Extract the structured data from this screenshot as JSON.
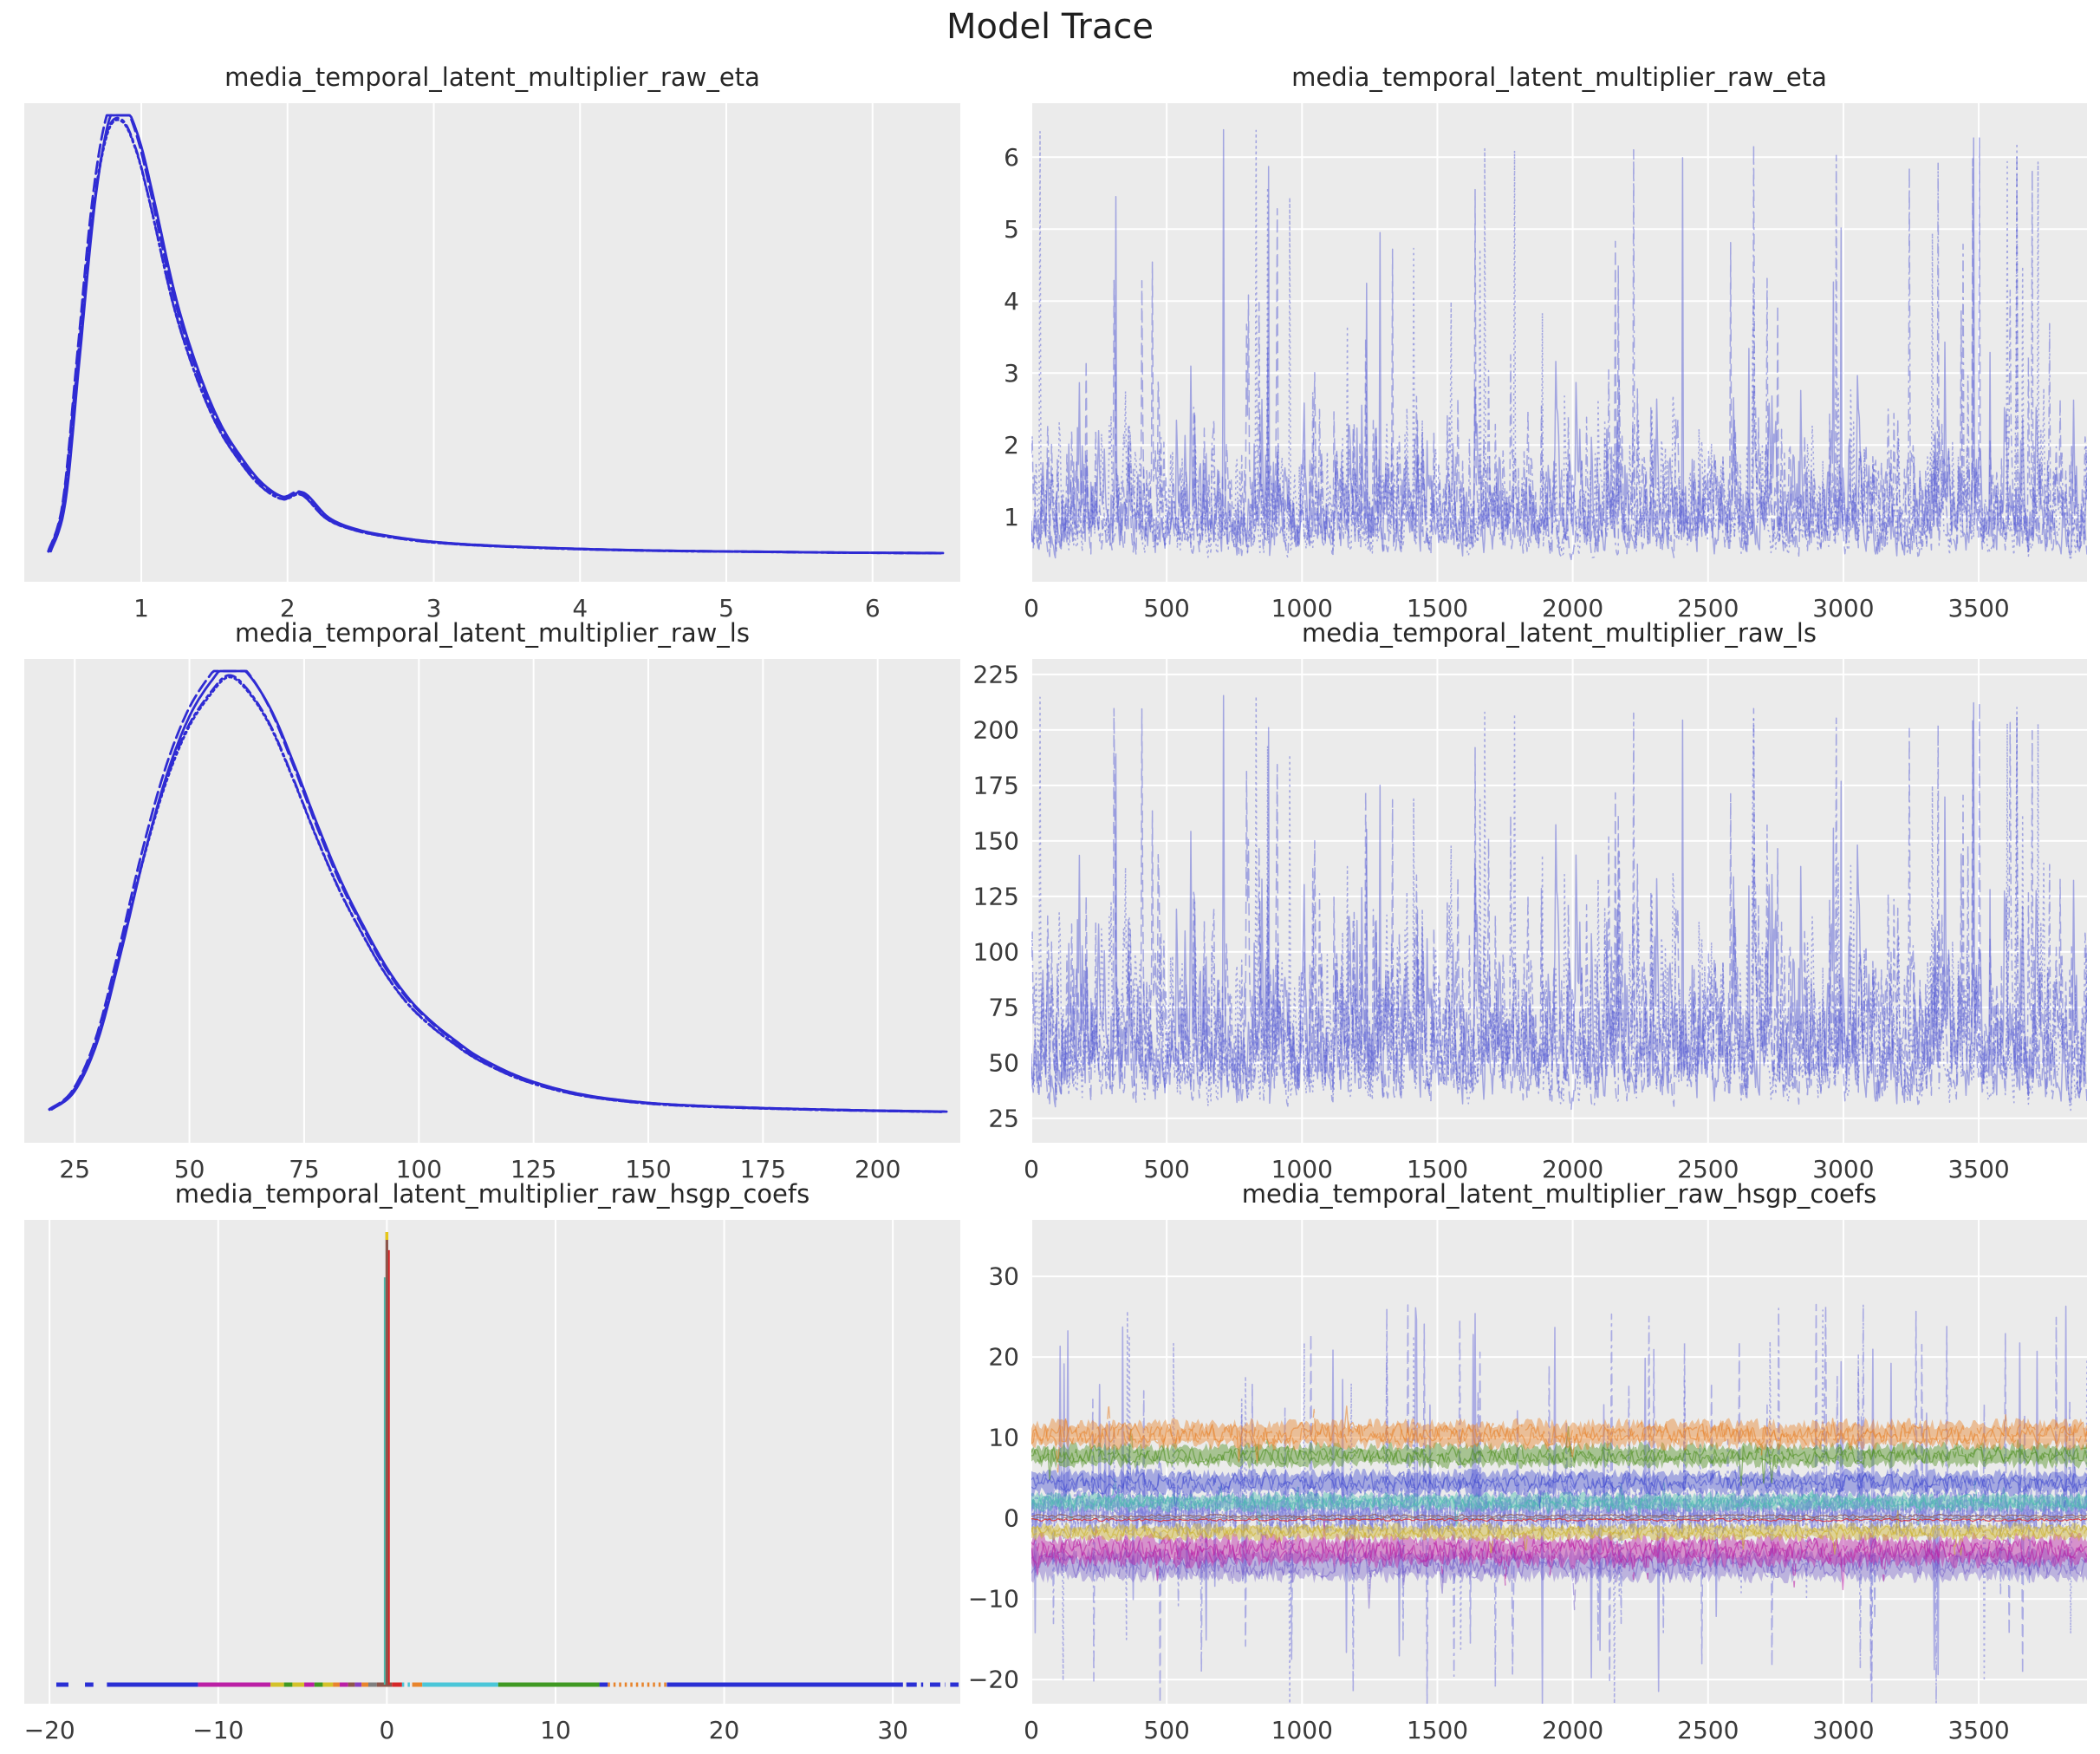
{
  "page": {
    "title": "Model Trace"
  },
  "style": {
    "plot_bg": "#ebebeb",
    "grid_color": "#ffffff",
    "title_color": "#262626",
    "tick_color": "#3a3a3a",
    "kde_blue": "#2f2bd3",
    "trace_blue": "#5a60d5"
  },
  "chain_linestyles": [
    "solid",
    "dashed",
    "dashdot",
    "dotted"
  ],
  "chart_data": [
    {
      "id": "eta-kde",
      "type": "kde",
      "title": "media_temporal_latent_multiplier_raw_eta",
      "xlim": [
        0.2,
        6.6
      ],
      "xticks": [
        1,
        2,
        3,
        4,
        5,
        6
      ],
      "xtick_labels": [
        "1",
        "2",
        "3",
        "4",
        "5",
        "6"
      ],
      "yticks": [],
      "grid": "vertical",
      "chains": 4,
      "color": "#2f2bd3",
      "line_width": 2.8,
      "baseline_offset": 30,
      "curve": [
        [
          0.35,
          0.01
        ],
        [
          0.45,
          0.12
        ],
        [
          0.55,
          0.45
        ],
        [
          0.65,
          0.78
        ],
        [
          0.75,
          0.97
        ],
        [
          0.85,
          1.0
        ],
        [
          0.95,
          0.93
        ],
        [
          1.05,
          0.8
        ],
        [
          1.2,
          0.58
        ],
        [
          1.35,
          0.42
        ],
        [
          1.5,
          0.3
        ],
        [
          1.65,
          0.22
        ],
        [
          1.8,
          0.16
        ],
        [
          1.95,
          0.13
        ],
        [
          2.08,
          0.14
        ],
        [
          2.25,
          0.085
        ],
        [
          2.45,
          0.058
        ],
        [
          2.7,
          0.042
        ],
        [
          3.0,
          0.03
        ],
        [
          3.4,
          0.022
        ],
        [
          4.0,
          0.015
        ],
        [
          4.6,
          0.011
        ],
        [
          5.2,
          0.009
        ],
        [
          5.8,
          0.007
        ],
        [
          6.45,
          0.006
        ]
      ]
    },
    {
      "id": "eta-trace",
      "type": "trace",
      "title": "media_temporal_latent_multiplier_raw_eta",
      "xlim": [
        0,
        3900
      ],
      "xticks": [
        0,
        500,
        1000,
        1500,
        2000,
        2500,
        3000,
        3500
      ],
      "xtick_labels": [
        "0",
        "500",
        "1000",
        "1500",
        "2000",
        "2500",
        "3000",
        "3500"
      ],
      "ylim": [
        0.1,
        6.75
      ],
      "yticks": [
        1,
        2,
        3,
        4,
        5,
        6
      ],
      "ytick_labels": [
        "1",
        "2",
        "3",
        "4",
        "5",
        "6"
      ],
      "grid": "both",
      "chains": 4,
      "color": "#5a60d5",
      "opacity": 0.5,
      "line_width": 1.5,
      "n_points": 1100,
      "model": {
        "lo": 0.32,
        "scale": 0.58,
        "smooth": 0.5,
        "spike_p": 0.012,
        "spike_lo": 3.0,
        "spike_hi": 6.4
      }
    },
    {
      "id": "ls-kde",
      "type": "kde",
      "title": "media_temporal_latent_multiplier_raw_ls",
      "xlim": [
        14,
        218
      ],
      "xticks": [
        25,
        50,
        75,
        100,
        125,
        150,
        175,
        200
      ],
      "xtick_labels": [
        "25",
        "50",
        "75",
        "100",
        "125",
        "150",
        "175",
        "200"
      ],
      "yticks": [],
      "grid": "vertical",
      "chains": 4,
      "color": "#2f2bd3",
      "line_width": 2.8,
      "baseline_offset": 28,
      "curve": [
        [
          19,
          0.02
        ],
        [
          24,
          0.06
        ],
        [
          29,
          0.17
        ],
        [
          34,
          0.36
        ],
        [
          39,
          0.57
        ],
        [
          44,
          0.75
        ],
        [
          49,
          0.88
        ],
        [
          54,
          0.96
        ],
        [
          58,
          1.0
        ],
        [
          62,
          0.97
        ],
        [
          67,
          0.89
        ],
        [
          72,
          0.77
        ],
        [
          77,
          0.64
        ],
        [
          82,
          0.52
        ],
        [
          87,
          0.42
        ],
        [
          92,
          0.33
        ],
        [
          97,
          0.26
        ],
        [
          102,
          0.21
        ],
        [
          107,
          0.17
        ],
        [
          112,
          0.135
        ],
        [
          120,
          0.095
        ],
        [
          128,
          0.068
        ],
        [
          136,
          0.05
        ],
        [
          145,
          0.038
        ],
        [
          155,
          0.03
        ],
        [
          170,
          0.024
        ],
        [
          185,
          0.02
        ],
        [
          200,
          0.017
        ],
        [
          214,
          0.015
        ]
      ]
    },
    {
      "id": "ls-trace",
      "type": "trace",
      "title": "media_temporal_latent_multiplier_raw_ls",
      "xlim": [
        0,
        3900
      ],
      "xticks": [
        0,
        500,
        1000,
        1500,
        2000,
        2500,
        3000,
        3500
      ],
      "xtick_labels": [
        "0",
        "500",
        "1000",
        "1500",
        "2000",
        "2500",
        "3000",
        "3500"
      ],
      "ylim": [
        14,
        232
      ],
      "yticks": [
        25,
        50,
        75,
        100,
        125,
        150,
        175,
        200,
        225
      ],
      "ytick_labels": [
        "25",
        "50",
        "75",
        "100",
        "125",
        "150",
        "175",
        "200",
        "225"
      ],
      "grid": "both",
      "chains": 4,
      "color": "#5a60d5",
      "opacity": 0.5,
      "line_width": 1.5,
      "n_points": 1100,
      "model": {
        "lo": 25,
        "scale": 27,
        "smooth": 0.5,
        "spike_p": 0.012,
        "spike_lo": 120,
        "spike_hi": 216
      }
    },
    {
      "id": "hsgp-kde",
      "type": "kde-multi",
      "title": "media_temporal_latent_multiplier_raw_hsgp_coefs",
      "xlim": [
        -21.5,
        34
      ],
      "xticks": [
        -20,
        -10,
        0,
        10,
        20,
        30
      ],
      "xtick_labels": [
        "−20",
        "−10",
        "0",
        "10",
        "20",
        "30"
      ],
      "yticks": [],
      "grid": "vertical",
      "baseline_offset": 22,
      "spike": {
        "x": 0,
        "height": 1.0,
        "colors": [
          "#49bcae",
          "#8c564b",
          "#d62728"
        ],
        "tip_color": "#e6c719"
      },
      "baseline_segments": [
        [
          -19.6,
          -18.6,
          "#2a2fd4",
          "dashed"
        ],
        [
          -17.9,
          -17.4,
          "#2a2fd4",
          "dashed"
        ],
        [
          -16.6,
          -11.2,
          "#2a2fd4",
          "solid"
        ],
        [
          -11.2,
          -6.9,
          "#bb1fa5",
          "solid"
        ],
        [
          -6.9,
          -6.1,
          "#d4c22a",
          "solid"
        ],
        [
          -6.1,
          -5.6,
          "#3f9922",
          "solid"
        ],
        [
          -5.6,
          -4.9,
          "#d4c22a",
          "solid"
        ],
        [
          -4.9,
          -4.3,
          "#bb1fa5",
          "solid"
        ],
        [
          -4.3,
          -3.8,
          "#3f9922",
          "solid"
        ],
        [
          -3.8,
          -3.2,
          "#d4c22a",
          "solid"
        ],
        [
          -3.2,
          -2.8,
          "#e8842c",
          "solid"
        ],
        [
          -2.8,
          -2.3,
          "#bb1fa5",
          "solid"
        ],
        [
          -2.3,
          -1.9,
          "#8c564b",
          "solid"
        ],
        [
          -1.9,
          -1.5,
          "#8a3fc1",
          "solid"
        ],
        [
          -1.5,
          -1.1,
          "#e8842c",
          "solid"
        ],
        [
          -1.1,
          -0.6,
          "#7f7f7f",
          "solid"
        ],
        [
          -0.6,
          0.3,
          "#8c564b",
          "solid"
        ],
        [
          0.3,
          0.9,
          "#d62728",
          "solid"
        ],
        [
          0.9,
          1.5,
          "#4ac6d8",
          "dotted"
        ],
        [
          1.5,
          2.1,
          "#e8842c",
          "solid"
        ],
        [
          2.1,
          6.6,
          "#4ac6d8",
          "solid"
        ],
        [
          6.6,
          12.6,
          "#3f9922",
          "solid"
        ],
        [
          12.6,
          13.1,
          "#2a2fd4",
          "solid"
        ],
        [
          13.1,
          16.6,
          "#e8842c",
          "dotted"
        ],
        [
          16.6,
          30.6,
          "#2a2fd4",
          "solid"
        ],
        [
          30.8,
          31.8,
          "#2a2fd4",
          "dashdot"
        ],
        [
          32.2,
          33.1,
          "#2a2fd4",
          "dashdot"
        ],
        [
          33.4,
          33.9,
          "#2a2fd4",
          "dashed"
        ]
      ]
    },
    {
      "id": "hsgp-trace",
      "type": "trace-bands",
      "title": "media_temporal_latent_multiplier_raw_hsgp_coefs",
      "xlim": [
        0,
        3900
      ],
      "xticks": [
        0,
        500,
        1000,
        1500,
        2000,
        2500,
        3000,
        3500
      ],
      "xtick_labels": [
        "0",
        "500",
        "1000",
        "1500",
        "2000",
        "2500",
        "3000",
        "3500"
      ],
      "ylim": [
        -23,
        37
      ],
      "yticks": [
        -20,
        -10,
        0,
        10,
        20,
        30
      ],
      "ytick_labels": [
        "−20",
        "−10",
        "0",
        "10",
        "20",
        "30"
      ],
      "grid": "both",
      "n_points": 520,
      "bands": [
        {
          "name": "chain-spikes",
          "color": "#7679dd",
          "center": 0.8,
          "spread": 3.4,
          "spike_p": 0.03,
          "spike_max": 26,
          "spike_min": 8,
          "up_bias": 0.58,
          "opacity": 0.55,
          "width": 1.6,
          "chains": 4,
          "n_points": 1100
        },
        {
          "name": "violet-band",
          "color": "#6a51c7",
          "center": -5.8,
          "spread": 1.9,
          "spike_p": 0.012,
          "spike_max": 6,
          "spike_min": 2,
          "up_bias": 0.3,
          "opacity": 0.45,
          "width": 1.4,
          "chains": 2,
          "fill": true
        },
        {
          "name": "magenta-band",
          "color": "#bb1fa5",
          "center": -4.0,
          "spread": 1.9,
          "spike_p": 0.015,
          "spike_max": 5,
          "spike_min": 2,
          "up_bias": 0.3,
          "opacity": 0.55,
          "width": 1.4,
          "chains": 2,
          "fill": true
        },
        {
          "name": "yellow-band",
          "color": "#ccb22e",
          "center": -1.7,
          "spread": 1.0,
          "spike_p": 0.012,
          "spike_max": 3,
          "spike_min": 1,
          "up_bias": 0.4,
          "opacity": 0.55,
          "width": 1.4,
          "chains": 2,
          "fill": true
        },
        {
          "name": "teal-band",
          "color": "#49bcae",
          "center": 2.0,
          "spread": 1.1,
          "spike_p": 0.012,
          "spike_max": 3,
          "spike_min": 1,
          "up_bias": 0.6,
          "opacity": 0.55,
          "width": 1.4,
          "chains": 2,
          "fill": true
        },
        {
          "name": "blue-band",
          "color": "#3c45cf",
          "center": 4.4,
          "spread": 1.5,
          "spike_p": 0.014,
          "spike_max": 4,
          "spike_min": 1,
          "up_bias": 0.6,
          "opacity": 0.5,
          "width": 1.4,
          "chains": 2,
          "fill": true
        },
        {
          "name": "green-band",
          "color": "#4f8f1f",
          "center": 7.8,
          "spread": 1.4,
          "spike_p": 0.012,
          "spike_max": 4,
          "spike_min": 1,
          "up_bias": 0.5,
          "opacity": 0.55,
          "width": 1.4,
          "chains": 2,
          "fill": true
        },
        {
          "name": "orange-band",
          "color": "#e8842c",
          "center": 10.4,
          "spread": 1.7,
          "spike_p": 0.015,
          "spike_max": 5,
          "spike_min": 1,
          "up_bias": 0.6,
          "opacity": 0.55,
          "width": 1.4,
          "chains": 2,
          "fill": true
        },
        {
          "name": "gray-line",
          "color": "#7f7f7f",
          "center": 0.0,
          "spread": 0.18,
          "spike_p": 0.0,
          "spike_max": 0,
          "spike_min": 0,
          "up_bias": 0.5,
          "opacity": 0.8,
          "width": 1.2,
          "chains": 1
        },
        {
          "name": "brown-line",
          "color": "#8c564b",
          "center": 0.3,
          "spread": 0.22,
          "spike_p": 0.0,
          "spike_max": 0,
          "spike_min": 0,
          "up_bias": 0.5,
          "opacity": 0.8,
          "width": 1.2,
          "chains": 1
        },
        {
          "name": "red-line",
          "color": "#d62728",
          "center": -0.2,
          "spread": 0.22,
          "spike_p": 0.0,
          "spike_max": 0,
          "spike_min": 0,
          "up_bias": 0.5,
          "opacity": 0.8,
          "width": 1.2,
          "chains": 1
        }
      ]
    }
  ]
}
